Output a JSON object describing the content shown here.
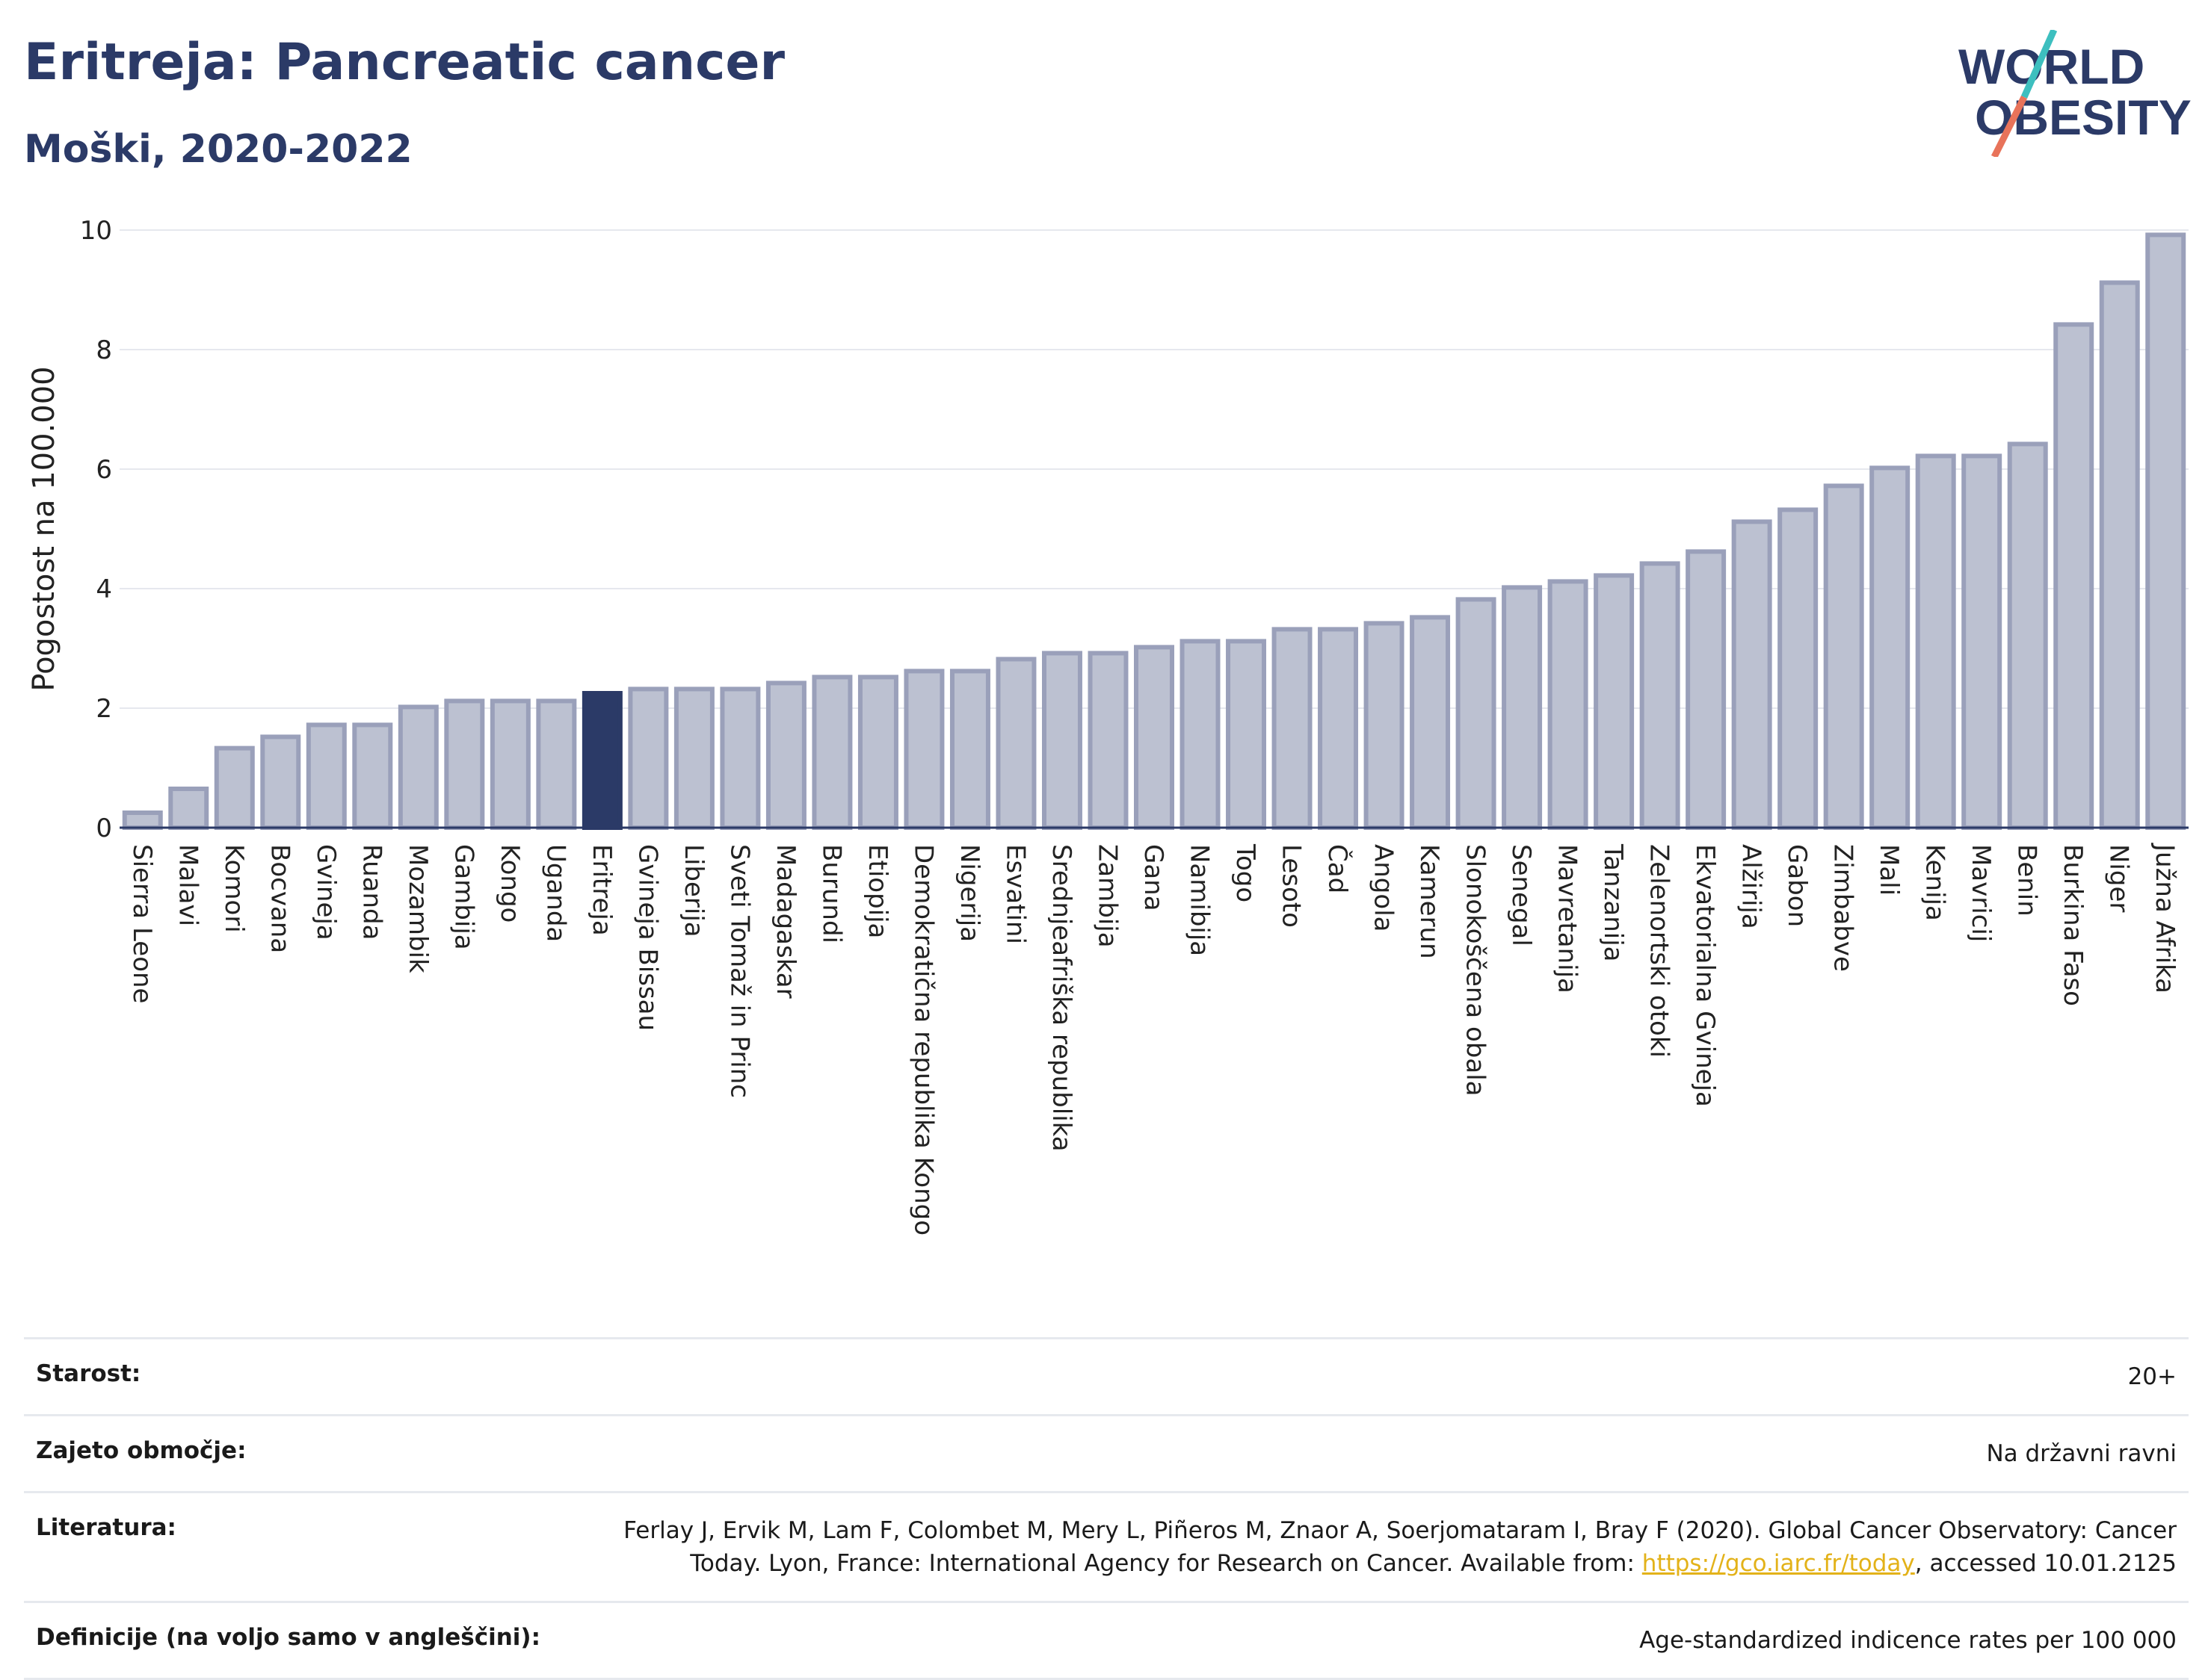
{
  "header": {
    "title": "Eritreja: Pancreatic cancer",
    "subtitle": "Moški, 2020-2022"
  },
  "logo": {
    "line1": "WORLD",
    "line2": "OBESITY",
    "text_color": "#2b3a67",
    "accent_teal": "#3dbfbf",
    "accent_coral": "#e8735a"
  },
  "chart_data": {
    "type": "bar",
    "ylabel": "Pogostost na 100.000",
    "ylim": [
      0,
      10
    ],
    "yticks": [
      0,
      2,
      4,
      6,
      8,
      10
    ],
    "highlight": "Eritreja",
    "colors": {
      "bar": "#bcc1d1",
      "bar_edge": "#9aa0ba",
      "highlight": "#2b3a67"
    },
    "categories": [
      "Sierra Leone",
      "Malavi",
      "Komori",
      "Bocvana",
      "Gvineja",
      "Ruanda",
      "Mozambik",
      "Gambija",
      "Kongo",
      "Uganda",
      "Eritreja",
      "Gvineja Bissau",
      "Liberija",
      "Sveti Tomaž in Princ",
      "Madagaskar",
      "Burundi",
      "Etiopija",
      "Demokratična republika Kongo",
      "Nigerija",
      "Esvatini",
      "Srednjeafriška republika",
      "Zambija",
      "Gana",
      "Namibija",
      "Togo",
      "Lesoto",
      "Čad",
      "Angola",
      "Kamerun",
      "Slonokoščena obala",
      "Senegal",
      "Mavretanija",
      "Tanzanija",
      "Zelenortski otoki",
      "Ekvatorialna Gvineja",
      "Alžirija",
      "Gabon",
      "Zimbabve",
      "Mali",
      "Kenija",
      "Mavricij",
      "Benin",
      "Burkina Faso",
      "Niger",
      "Južna Afrika"
    ],
    "values": [
      0.25,
      0.65,
      1.33,
      1.52,
      1.72,
      1.72,
      2.02,
      2.12,
      2.12,
      2.12,
      2.25,
      2.32,
      2.32,
      2.32,
      2.42,
      2.52,
      2.52,
      2.62,
      2.62,
      2.82,
      2.92,
      2.92,
      3.02,
      3.12,
      3.12,
      3.32,
      3.32,
      3.42,
      3.52,
      3.82,
      4.02,
      4.12,
      4.22,
      4.42,
      4.62,
      5.12,
      5.32,
      5.72,
      6.02,
      6.22,
      6.22,
      6.42,
      8.42,
      9.12,
      9.92
    ]
  },
  "meta": [
    {
      "label": "Starost:",
      "value": "20+"
    },
    {
      "label": "Zajeto območje:",
      "value": "Na državni ravni"
    },
    {
      "label": "Literatura:",
      "value_pre": "Ferlay J, Ervik M, Lam F, Colombet M, Mery L, Piñeros M, Znaor A, Soerjomataram I, Bray F (2020). Global Cancer Observatory: Cancer Today. Lyon, France: International Agency for Research on Cancer. Available from: ",
      "link": "https://gco.iarc.fr/today",
      "value_post": ", accessed 10.01.2125"
    },
    {
      "label": "Definicije (na voljo samo v angleščini):",
      "value": "Age-standardized indicence rates per 100 000"
    }
  ]
}
